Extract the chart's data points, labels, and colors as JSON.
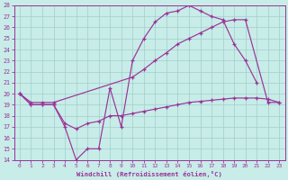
{
  "xlabel": "Windchill (Refroidissement éolien,°C)",
  "xlim": [
    -0.5,
    23.5
  ],
  "ylim": [
    14,
    28
  ],
  "xticks": [
    0,
    1,
    2,
    3,
    4,
    5,
    6,
    7,
    8,
    9,
    10,
    11,
    12,
    13,
    14,
    15,
    16,
    17,
    18,
    19,
    20,
    21,
    22,
    23
  ],
  "yticks": [
    14,
    15,
    16,
    17,
    18,
    19,
    20,
    21,
    22,
    23,
    24,
    25,
    26,
    27,
    28
  ],
  "bg_color": "#c8ece8",
  "line_color": "#993399",
  "grid_color": "#9fcfca",
  "s1x": [
    0,
    1,
    2,
    3,
    4,
    5,
    6,
    7,
    8,
    9,
    10,
    11,
    12,
    13,
    14,
    15,
    16,
    17,
    18,
    19,
    20,
    21
  ],
  "s1y": [
    20,
    19,
    19,
    19,
    17,
    14,
    15,
    15,
    20.5,
    17,
    23,
    25,
    26.5,
    27.3,
    27.5,
    28,
    27.5,
    27,
    26.7,
    24.5,
    23.0,
    21
  ],
  "s2x": [
    0,
    1,
    2,
    3,
    10,
    11,
    12,
    13,
    14,
    15,
    16,
    17,
    18,
    19,
    20,
    22,
    23
  ],
  "s2y": [
    20,
    19.2,
    19.2,
    19.2,
    21.5,
    22.2,
    23.0,
    23.7,
    24.5,
    25.0,
    25.5,
    26.0,
    26.5,
    26.7,
    26.7,
    19.2,
    19.2
  ],
  "s3x": [
    0,
    1,
    2,
    3,
    4,
    5,
    6,
    7,
    8,
    9,
    10,
    11,
    12,
    13,
    14,
    15,
    16,
    17,
    18,
    19,
    20,
    21,
    22,
    23
  ],
  "s3y": [
    20,
    19.0,
    19.0,
    19.0,
    17.3,
    16.8,
    17.3,
    17.5,
    18.0,
    18.0,
    18.2,
    18.4,
    18.6,
    18.8,
    19.0,
    19.2,
    19.3,
    19.4,
    19.5,
    19.6,
    19.6,
    19.6,
    19.5,
    19.2
  ]
}
